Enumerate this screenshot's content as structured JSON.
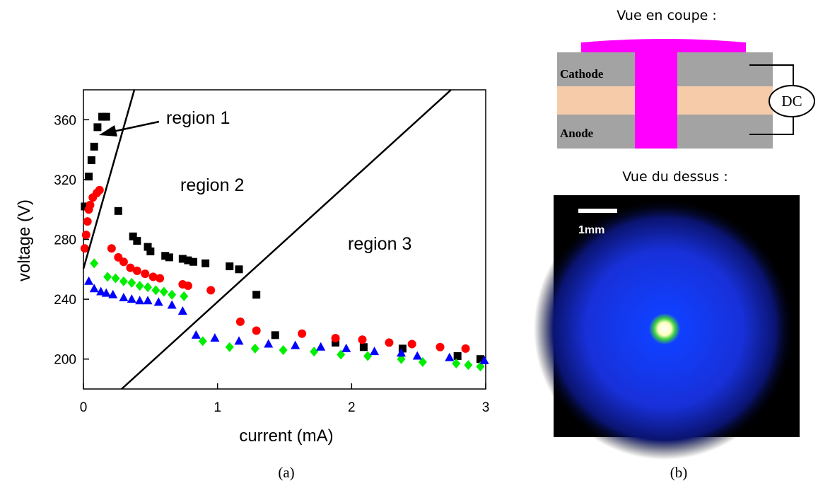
{
  "chart_data": {
    "type": "scatter",
    "xlabel": "current (mA)",
    "ylabel": "voltage (V)",
    "xlim": [
      0,
      3
    ],
    "ylim": [
      180,
      380
    ],
    "xticks": [
      0,
      1,
      2,
      3
    ],
    "yticks": [
      200,
      240,
      280,
      320,
      360
    ],
    "annotations": [
      "region 1",
      "region 2",
      "region 3"
    ],
    "series": [
      {
        "color": "#000000",
        "marker": "square",
        "x": [
          0.01,
          0.04,
          0.06,
          0.08,
          0.105,
          0.14,
          0.17,
          0.26,
          0.37,
          0.4,
          0.48,
          0.5,
          0.61,
          0.64,
          0.74,
          0.78,
          0.82,
          0.91,
          1.09,
          1.16,
          1.29,
          1.43,
          1.88,
          2.09,
          2.38,
          2.79,
          2.96
        ],
        "values": [
          302,
          322,
          333,
          342,
          355,
          362,
          362,
          299,
          282,
          279,
          275,
          272,
          269,
          268,
          267,
          266,
          265,
          264,
          262,
          260,
          243,
          216,
          211,
          208,
          207,
          202,
          200
        ]
      },
      {
        "color": "#ff0000",
        "marker": "circle",
        "x": [
          0.01,
          0.02,
          0.03,
          0.04,
          0.05,
          0.07,
          0.1,
          0.12,
          0.21,
          0.26,
          0.3,
          0.35,
          0.4,
          0.46,
          0.52,
          0.57,
          0.74,
          0.78,
          0.95,
          1.17,
          1.29,
          1.63,
          1.88,
          2.08,
          2.28,
          2.45,
          2.66,
          2.85
        ],
        "values": [
          274,
          283,
          292,
          300,
          303,
          308,
          311,
          313,
          274,
          268,
          265,
          261,
          259,
          257,
          255,
          254,
          250,
          249,
          246,
          225,
          219,
          217,
          214,
          213,
          211,
          210,
          208,
          207
        ]
      },
      {
        "color": "#00ee00",
        "marker": "diamond",
        "x": [
          0.08,
          0.18,
          0.24,
          0.3,
          0.36,
          0.42,
          0.48,
          0.54,
          0.6,
          0.66,
          0.75,
          0.89,
          1.09,
          1.28,
          1.49,
          1.72,
          1.92,
          2.12,
          2.37,
          2.53,
          2.78,
          2.87,
          2.96
        ],
        "values": [
          264,
          255,
          254,
          252,
          251,
          249,
          248,
          246,
          245,
          243,
          242,
          212,
          208,
          207,
          206,
          205,
          203,
          202,
          200,
          198,
          197,
          196,
          195
        ]
      },
      {
        "color": "#0000ff",
        "marker": "triangle",
        "x": [
          0.04,
          0.08,
          0.13,
          0.17,
          0.22,
          0.3,
          0.36,
          0.42,
          0.48,
          0.56,
          0.66,
          0.74,
          0.84,
          0.98,
          1.16,
          1.38,
          1.58,
          1.77,
          1.96,
          2.17,
          2.37,
          2.49,
          2.73,
          2.99
        ],
        "values": [
          252,
          247,
          245,
          244,
          243,
          241,
          240,
          239,
          239,
          238,
          236,
          232,
          216,
          214,
          212,
          210,
          209,
          208,
          207,
          205,
          204,
          202,
          201,
          199
        ]
      }
    ]
  },
  "captions": [
    "(a)",
    "(b)"
  ],
  "diagram": {
    "section_title": "Vue en coupe :",
    "cathode": "Cathode",
    "anode": "Anode",
    "source": "DC",
    "top_view_title": "Vue du dessus :",
    "scale_label": "1mm"
  }
}
